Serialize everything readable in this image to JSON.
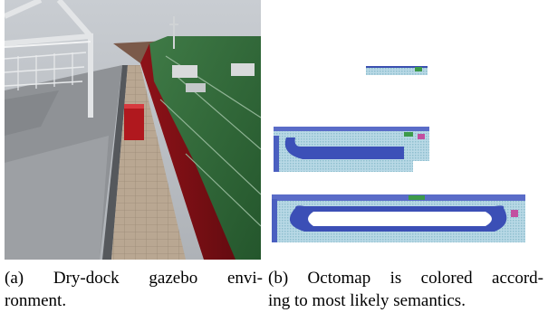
{
  "figure": {
    "panel_a": {
      "caption_line_1": "(a) Dry-dock gazebo envi-",
      "caption_line_2": "ronment."
    },
    "panel_b": {
      "caption_line_1": "(b) Octomap is colored accord-",
      "caption_line_2": "ing to most likely semantics."
    }
  }
}
